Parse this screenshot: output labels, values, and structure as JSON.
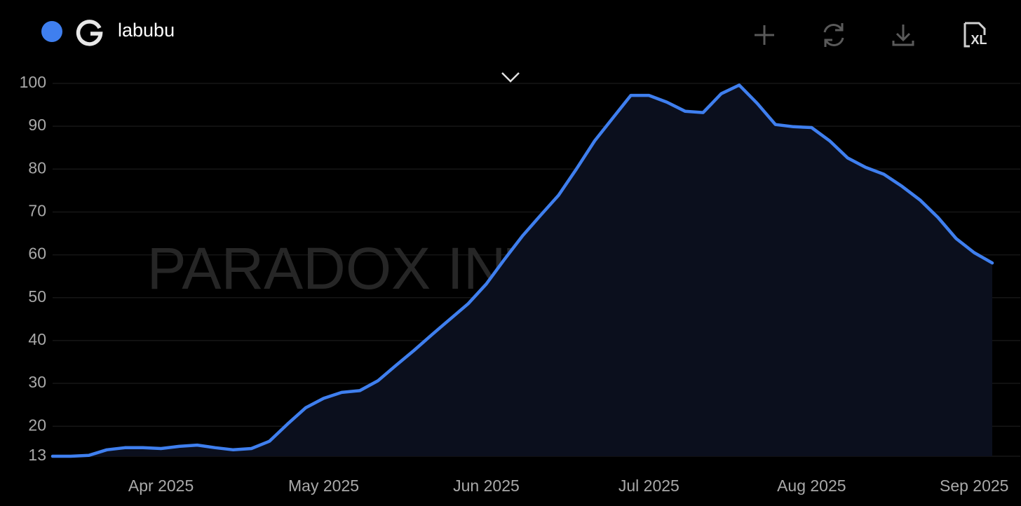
{
  "chart_data": {
    "type": "line",
    "watermark": "PARADOX INTELLIGENCE",
    "categories": [
      null,
      null,
      null,
      null,
      null,
      null,
      "Apr 2025",
      null,
      null,
      null,
      null,
      null,
      null,
      null,
      null,
      "May 2025",
      null,
      null,
      null,
      null,
      null,
      null,
      null,
      null,
      "Jun 2025",
      null,
      null,
      null,
      null,
      null,
      null,
      null,
      null,
      "Jul 2025",
      null,
      null,
      null,
      null,
      null,
      null,
      null,
      null,
      "Aug 2025",
      null,
      null,
      null,
      null,
      null,
      null,
      null,
      null,
      "Sep 2025",
      null
    ],
    "series": [
      {
        "name": "labubu",
        "color": "#3f7fef",
        "values": [
          13,
          13,
          13.2,
          14.5,
          15,
          15,
          14.8,
          15.3,
          15.6,
          15,
          14.5,
          14.8,
          16.5,
          20.5,
          24.3,
          26.5,
          27.9,
          28.3,
          30.6,
          34.2,
          37.7,
          41.4,
          45,
          48.6,
          53.2,
          58.9,
          64.4,
          69.2,
          73.9,
          80.1,
          86.6,
          91.9,
          97.2,
          97.2,
          95.6,
          93.5,
          93.2,
          97.6,
          99.6,
          95.3,
          90.4,
          89.9,
          89.7,
          86.6,
          82.6,
          80.4,
          78.8,
          76,
          72.8,
          68.7,
          63.8,
          60.5,
          58.1
        ]
      }
    ],
    "ylim": [
      13,
      100
    ],
    "yticks": [
      13,
      20,
      30,
      40,
      50,
      60,
      70,
      80,
      90,
      100
    ],
    "grid": true,
    "area_fill": "#0b0f1d"
  },
  "toolbar": {
    "excel_label": "XL"
  }
}
